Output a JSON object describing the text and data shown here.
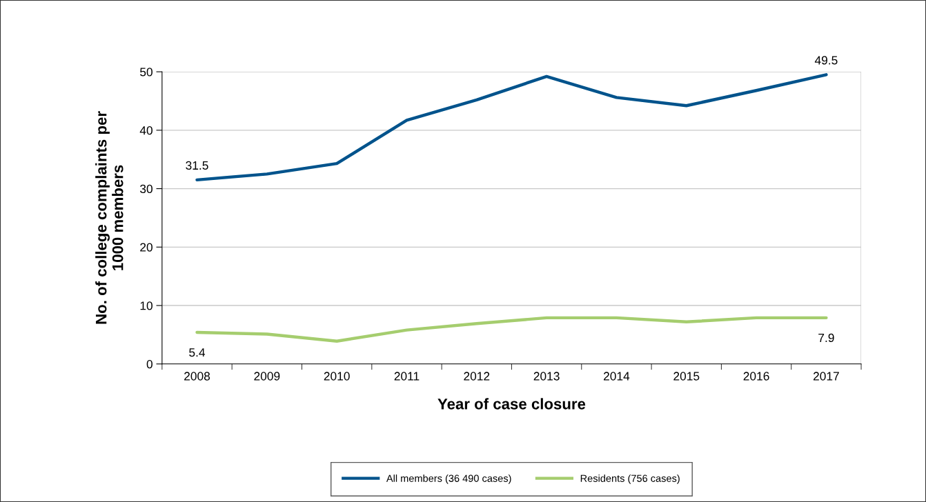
{
  "chart_data": {
    "type": "line",
    "xlabel": "Year of case closure",
    "ylabel": "No. of college complaints per\n1000 members",
    "categories": [
      "2008",
      "2009",
      "2010",
      "2011",
      "2012",
      "2013",
      "2014",
      "2015",
      "2016",
      "2017"
    ],
    "series": [
      {
        "name": "All members (36 490 cases)",
        "color": "#00538c",
        "values": [
          31.5,
          32.5,
          34.3,
          41.7,
          45.2,
          49.2,
          45.6,
          44.2,
          46.8,
          49.5
        ],
        "value_labels": [
          "31.5",
          null,
          null,
          null,
          null,
          null,
          null,
          null,
          null,
          "49.5"
        ]
      },
      {
        "name": "Residents (756 cases)",
        "color": "#a5cd6e",
        "values": [
          5.4,
          5.1,
          3.9,
          5.8,
          6.9,
          7.9,
          7.9,
          7.2,
          7.9,
          7.9
        ],
        "value_labels": [
          "5.4",
          null,
          null,
          null,
          null,
          null,
          null,
          null,
          null,
          "7.9"
        ]
      }
    ],
    "ylim": [
      0,
      50
    ],
    "yticks": [
      0,
      10,
      20,
      30,
      40,
      50
    ],
    "grid": "y",
    "legend": "bottom",
    "marker": "none",
    "line_style": "solid"
  }
}
